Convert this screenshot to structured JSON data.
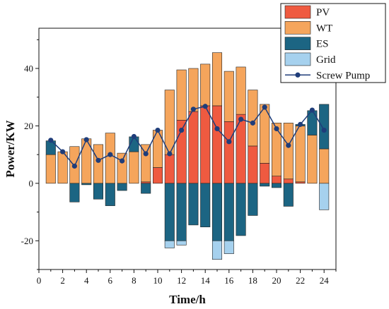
{
  "chart_data": {
    "type": "bar",
    "xlabel": "Time/h",
    "ylabel": "Power/KW",
    "xlim": [
      0,
      25
    ],
    "ylim": [
      -30,
      54
    ],
    "xticks": [
      0,
      2,
      4,
      6,
      8,
      10,
      12,
      14,
      16,
      18,
      20,
      22,
      24
    ],
    "yticks": [
      -20,
      0,
      20,
      40
    ],
    "x": [
      1,
      2,
      3,
      4,
      5,
      6,
      7,
      8,
      9,
      10,
      11,
      12,
      13,
      14,
      15,
      16,
      17,
      18,
      19,
      20,
      21,
      22,
      23,
      24
    ],
    "colors": {
      "PV": "#ef5a40",
      "WT": "#f5a55c",
      "ES": "#1c6583",
      "Grid": "#a6d1ee",
      "ScrewPump": "#1f3d7a"
    },
    "legend": [
      "PV",
      "WT",
      "ES",
      "Grid",
      "Screw Pump"
    ],
    "legend_position": "top-right",
    "series": [
      {
        "key": "PV",
        "name": "PV",
        "values": [
          0,
          0,
          0,
          0,
          0,
          0,
          0,
          0,
          0.5,
          5.5,
          10,
          22,
          25,
          27,
          27,
          21.5,
          24,
          13,
          7,
          2.5,
          1.5,
          0.5,
          0,
          0
        ]
      },
      {
        "key": "WT",
        "name": "WT",
        "values": [
          10,
          11,
          12.8,
          15.5,
          13.5,
          17.5,
          10.5,
          11,
          13,
          13,
          22.5,
          17.5,
          15,
          14.5,
          18.5,
          17.5,
          16.5,
          19.5,
          20.5,
          18.5,
          19.5,
          19.5,
          16.8,
          12
        ]
      },
      {
        "key": "ES",
        "name": "ES",
        "values": [
          4.8,
          0,
          -6.5,
          -0.5,
          -5.5,
          -7.8,
          -2.5,
          5.2,
          -3.5,
          0,
          -20,
          -20,
          -14.5,
          -15.2,
          -20,
          -20,
          -18.2,
          -11.2,
          -1,
          -1.5,
          -8,
          0.5,
          8.5,
          15.5
        ]
      },
      {
        "key": "Grid",
        "name": "Grid",
        "values": [
          0,
          0,
          0,
          0,
          0,
          0,
          0,
          0,
          0,
          0,
          -2.5,
          -1.5,
          0,
          0,
          -6.5,
          -4.5,
          0,
          0,
          0,
          0,
          0,
          0,
          0,
          -9.2
        ]
      },
      {
        "key": "ScrewPump",
        "name": "Screw Pump",
        "type": "line",
        "values": [
          15,
          11,
          6,
          15.2,
          8,
          10,
          7.8,
          16.3,
          10.3,
          18.5,
          10.3,
          18.5,
          25.8,
          26.8,
          19,
          14.5,
          22.3,
          21,
          26.5,
          19,
          13.2,
          20.5,
          25.5,
          18.5
        ]
      }
    ]
  }
}
